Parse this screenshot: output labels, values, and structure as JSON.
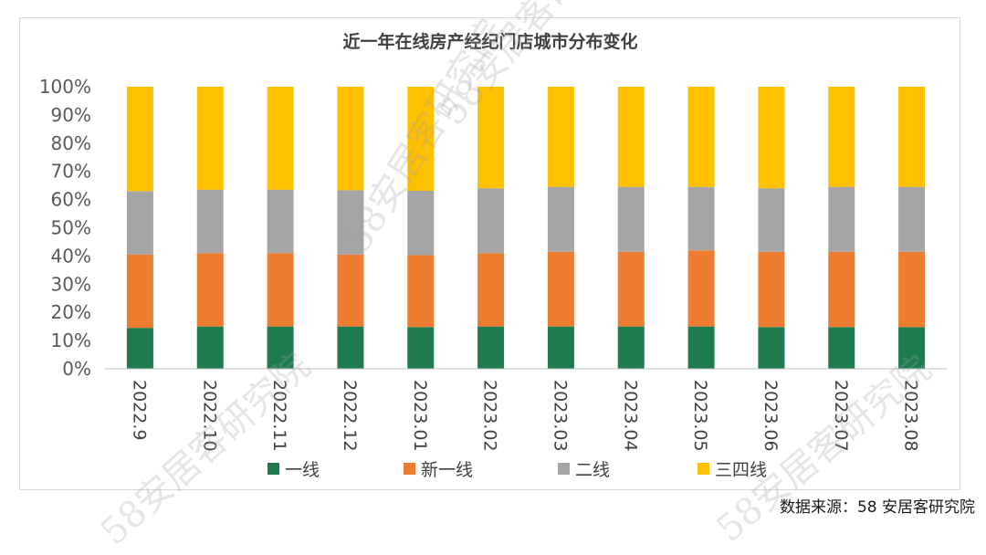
{
  "chart_data": {
    "type": "bar",
    "stacked": true,
    "title": "近一年在线房产经纪门店城市分布变化",
    "categories": [
      "2022.9",
      "2022.10",
      "2022.11",
      "2022.12",
      "2023.01",
      "2023.02",
      "2023.03",
      "2023.04",
      "2023.05",
      "2023.06",
      "2023.07",
      "2023.08"
    ],
    "series": [
      {
        "name": "一线",
        "color": "#1e7b4e",
        "values": [
          14.5,
          15.0,
          15.0,
          15.0,
          14.8,
          15.0,
          15.0,
          15.0,
          15.0,
          14.8,
          14.8,
          14.8
        ]
      },
      {
        "name": "新一线",
        "color": "#ed7d31",
        "values": [
          26.0,
          26.0,
          26.0,
          25.5,
          25.5,
          26.0,
          26.5,
          26.5,
          27.0,
          26.7,
          26.7,
          26.7
        ]
      },
      {
        "name": "二线",
        "color": "#a5a5a5",
        "values": [
          22.5,
          22.5,
          22.5,
          22.8,
          22.8,
          23.0,
          23.0,
          23.0,
          22.5,
          22.5,
          23.0,
          23.0
        ]
      },
      {
        "name": "三四线",
        "color": "#ffc000",
        "values": [
          37.0,
          36.5,
          36.5,
          36.7,
          36.9,
          36.0,
          35.5,
          35.5,
          35.5,
          36.0,
          35.5,
          35.5
        ]
      }
    ],
    "yticks": [
      "0%",
      "10%",
      "20%",
      "30%",
      "40%",
      "50%",
      "60%",
      "70%",
      "80%",
      "90%",
      "100%"
    ],
    "ylim": [
      0,
      100
    ],
    "xlabel": "",
    "ylabel": "",
    "grid": false,
    "legend_position": "bottom"
  },
  "source_note": "数据来源：58 安居客研究院",
  "watermark": "58安居客研究院"
}
